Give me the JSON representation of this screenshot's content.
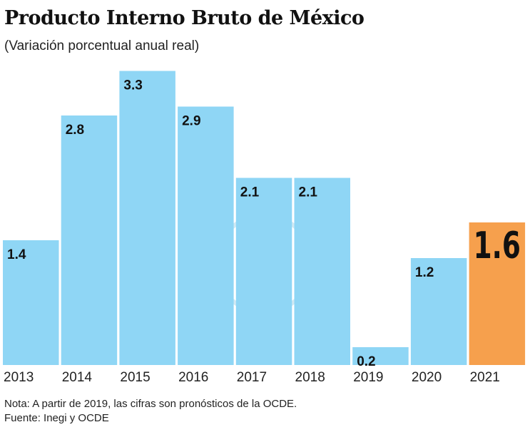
{
  "chart_data": {
    "type": "bar",
    "title": "Producto Interno Bruto de México",
    "subtitle": "(Variación porcentual anual real)",
    "categories": [
      "2013",
      "2014",
      "2015",
      "2016",
      "2017",
      "2018",
      "2019",
      "2020",
      "2021"
    ],
    "values": [
      1.4,
      2.8,
      3.3,
      2.9,
      2.1,
      2.1,
      0.2,
      1.2,
      1.6
    ],
    "data_labels": [
      "1.4",
      "2.8",
      "3.3",
      "2.9",
      "2.1",
      "2.1",
      "0.2",
      "1.2",
      "1.6"
    ],
    "highlight_index": 8,
    "colors": {
      "bar": "#8fd6f5",
      "highlight": "#f6a04d"
    },
    "ylim": [
      0,
      3.3
    ],
    "grid": false,
    "legend": "none"
  },
  "notes": {
    "nota": "Nota: A partir de 2019, las cifras son pronósticos de la OCDE.",
    "fuente": "Fuente: Inegi y OCDE"
  }
}
